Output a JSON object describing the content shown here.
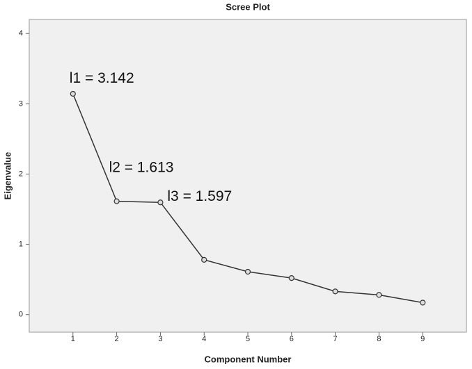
{
  "chart_data": {
    "type": "line",
    "title": "Scree Plot",
    "x_label": "Component Number",
    "y_label": "Eigenvalue",
    "x": [
      1,
      2,
      3,
      4,
      5,
      6,
      7,
      8,
      9
    ],
    "series": [
      {
        "name": "Eigenvalue",
        "color": "#333333",
        "values": [
          3.142,
          1.613,
          1.597,
          0.78,
          0.61,
          0.52,
          0.33,
          0.28,
          0.17
        ]
      }
    ],
    "annotations": [
      "l1 = 3.142",
      "l2 = 1.613",
      "l3 = 1.597"
    ],
    "xlim": [
      0,
      10
    ],
    "xticks": [
      1,
      2,
      3,
      4,
      5,
      6,
      7,
      8,
      9
    ],
    "ylim": [
      -0.25,
      4.2
    ],
    "yticks": [
      0,
      1,
      2,
      3,
      4
    ],
    "grid": false
  }
}
